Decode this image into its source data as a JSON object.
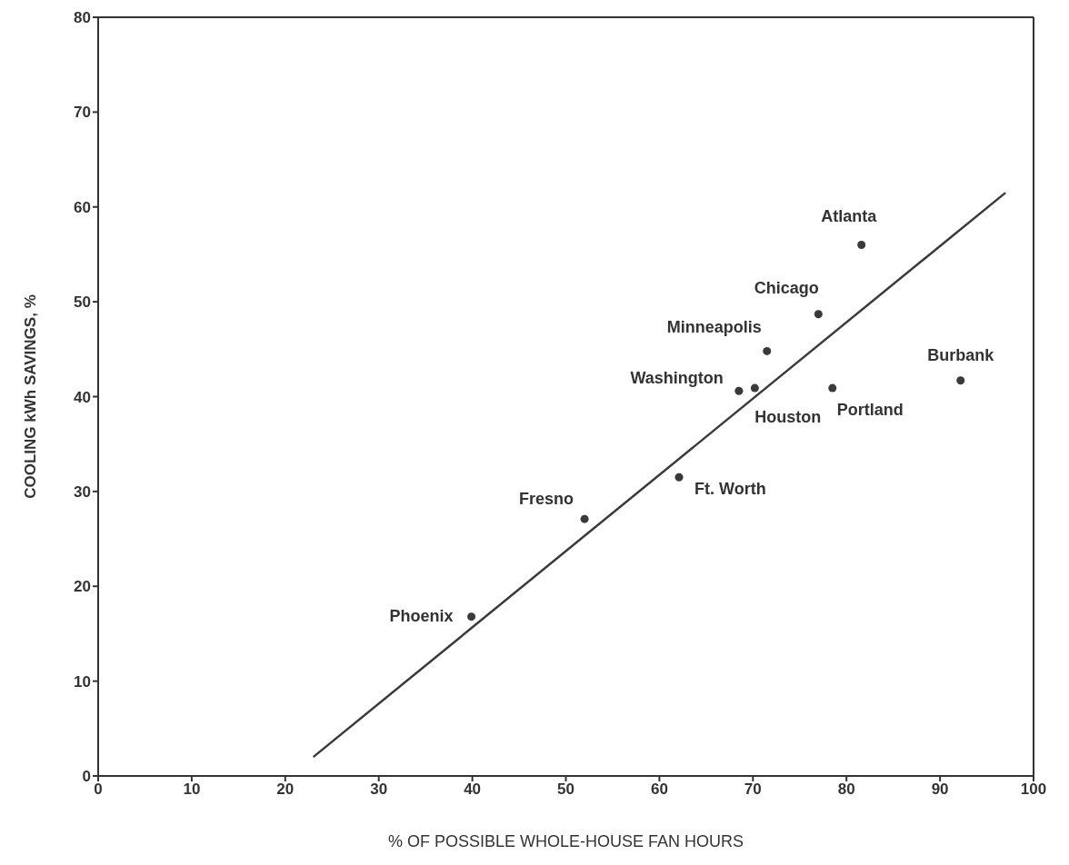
{
  "chart_data": {
    "type": "scatter",
    "xlabel": "% OF POSSIBLE WHOLE-HOUSE FAN HOURS",
    "ylabel": "COOLING kWh SAVINGS, %",
    "xlim": [
      0,
      100
    ],
    "xticks": [
      0,
      10,
      20,
      30,
      40,
      50,
      60,
      70,
      80,
      90,
      100
    ],
    "ylim": [
      0,
      80
    ],
    "yticks": [
      0,
      10,
      20,
      30,
      40,
      50,
      60,
      70,
      80
    ],
    "grid": false,
    "legend": false,
    "series": [
      {
        "marker": "circle",
        "color": "#3a3a3a",
        "x": [
          39.9,
          52.0,
          62.1,
          68.5,
          70.2,
          71.5,
          78.5,
          77.0,
          81.6,
          92.2
        ],
        "values": [
          16.8,
          27.1,
          31.5,
          40.6,
          40.9,
          44.8,
          40.9,
          48.7,
          56.0,
          41.7
        ]
      },
      {
        "type": "line",
        "color": "#3a3a3a",
        "x": [
          23,
          97
        ],
        "values": [
          2,
          61.5
        ]
      }
    ],
    "annotations": [
      {
        "text": "Phoenix",
        "x": 39.9,
        "y": 16.8
      },
      {
        "text": "Fresno",
        "x": 52.0,
        "y": 27.1
      },
      {
        "text": "Ft. Worth",
        "x": 62.1,
        "y": 31.5
      },
      {
        "text": "Washington",
        "x": 68.5,
        "y": 40.6
      },
      {
        "text": "Houston",
        "x": 70.2,
        "y": 40.9
      },
      {
        "text": "Minneapolis",
        "x": 71.5,
        "y": 44.8
      },
      {
        "text": "Portland",
        "x": 78.5,
        "y": 40.9
      },
      {
        "text": "Chicago",
        "x": 77.0,
        "y": 48.7
      },
      {
        "text": "Atlanta",
        "x": 81.6,
        "y": 56.0
      },
      {
        "text": "Burbank",
        "x": 92.2,
        "y": 41.7
      }
    ]
  }
}
